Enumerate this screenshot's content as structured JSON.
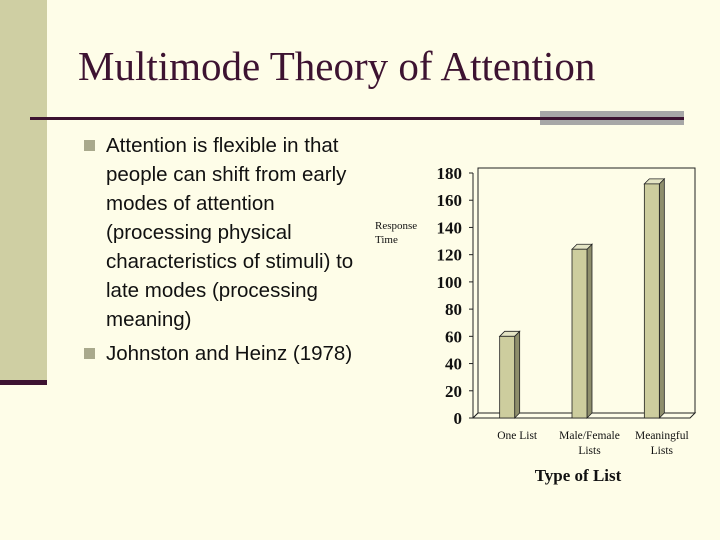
{
  "slide": {
    "title": "Multimode Theory of Attention",
    "bullets": [
      "Attention is flexible in that people can shift from early modes of attention (processing physical characteristics of stimuli) to late modes (processing meaning)",
      "Johnston and Heinz (1978)"
    ],
    "colors": {
      "background": "#fefde8",
      "accent": "#3d1331",
      "sidebar": "#cfcfa3",
      "bar_fill": "#cdcd9e"
    }
  },
  "chart_data": {
    "type": "bar",
    "categories": [
      [
        "One List"
      ],
      [
        "Male/Female",
        "Lists"
      ],
      [
        "Meaningful",
        "Lists"
      ]
    ],
    "values": [
      60,
      124,
      172
    ],
    "title": "",
    "xlabel": "Type of List",
    "ylabel": [
      "Response",
      "Time"
    ],
    "ylim": [
      0,
      180
    ],
    "yticks": [
      0,
      20,
      40,
      60,
      80,
      100,
      120,
      140,
      160,
      180
    ],
    "grid": false,
    "legend": "none",
    "style": "3d"
  }
}
